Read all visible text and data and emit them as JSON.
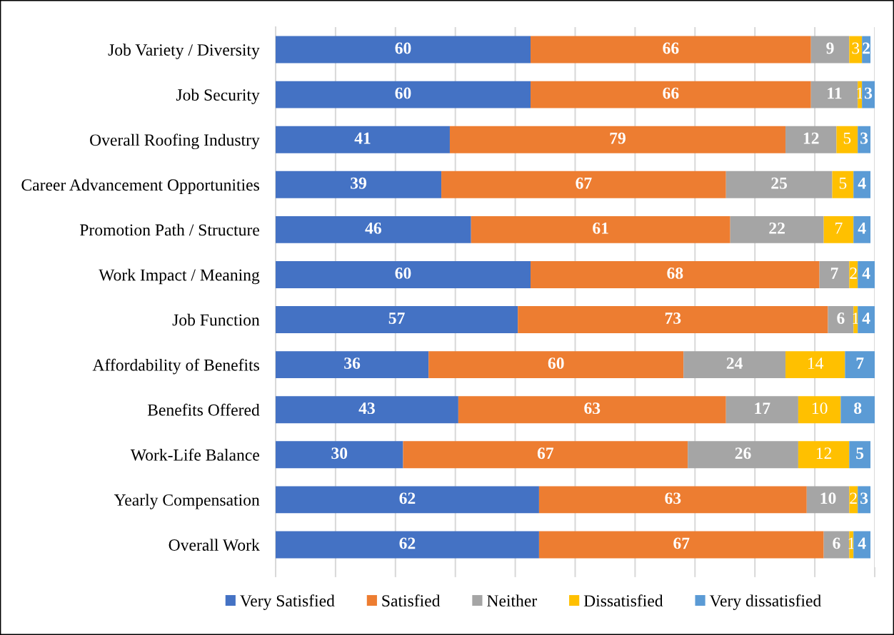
{
  "chart_data": {
    "type": "bar",
    "orientation": "horizontal",
    "stacked": true,
    "data_labels": true,
    "grid": "x",
    "legend": "bottom",
    "tick_labels": "y",
    "xlim": [
      0,
      141
    ],
    "xticks": [
      {
        "value": 0,
        "label": null
      },
      {
        "value": 14.1,
        "label": null
      },
      {
        "value": 28.2,
        "label": null
      },
      {
        "value": 42.3,
        "label": null
      },
      {
        "value": 56.4,
        "label": null
      },
      {
        "value": 70.5,
        "label": null
      },
      {
        "value": 84.6,
        "label": null
      },
      {
        "value": 98.7,
        "label": null
      },
      {
        "value": 112.8,
        "label": null
      },
      {
        "value": 126.9,
        "label": null
      },
      {
        "value": 141,
        "label": null
      }
    ],
    "categories": [
      "Job Variety / Diversity",
      "Job Security",
      "Overall Roofing Industry",
      "Career Advancement Opportunities",
      "Promotion Path / Structure",
      "Work Impact / Meaning",
      "Job Function",
      "Affordability of Benefits",
      "Benefits Offered",
      "Work-Life Balance",
      "Yearly Compensation",
      "Overall Work"
    ],
    "series": [
      {
        "name": "Very Satisfied",
        "color": "#4472c4",
        "values": [
          60,
          60,
          41,
          39,
          46,
          60,
          57,
          36,
          43,
          30,
          62,
          62
        ]
      },
      {
        "name": "Satisfied",
        "color": "#ed7d31",
        "values": [
          66,
          66,
          79,
          67,
          61,
          68,
          73,
          60,
          63,
          67,
          63,
          67
        ]
      },
      {
        "name": "Neither",
        "color": "#a5a5a5",
        "values": [
          9,
          11,
          12,
          25,
          22,
          7,
          6,
          24,
          17,
          26,
          10,
          6
        ]
      },
      {
        "name": "Dissatisfied",
        "color": "#ffc000",
        "values": [
          3,
          1,
          5,
          5,
          7,
          2,
          1,
          14,
          10,
          12,
          2,
          1
        ]
      },
      {
        "name": "Very dissatisfied",
        "color": "#5b9bd5",
        "values": [
          2,
          3,
          3,
          4,
          4,
          4,
          4,
          7,
          8,
          5,
          3,
          4
        ]
      }
    ]
  }
}
